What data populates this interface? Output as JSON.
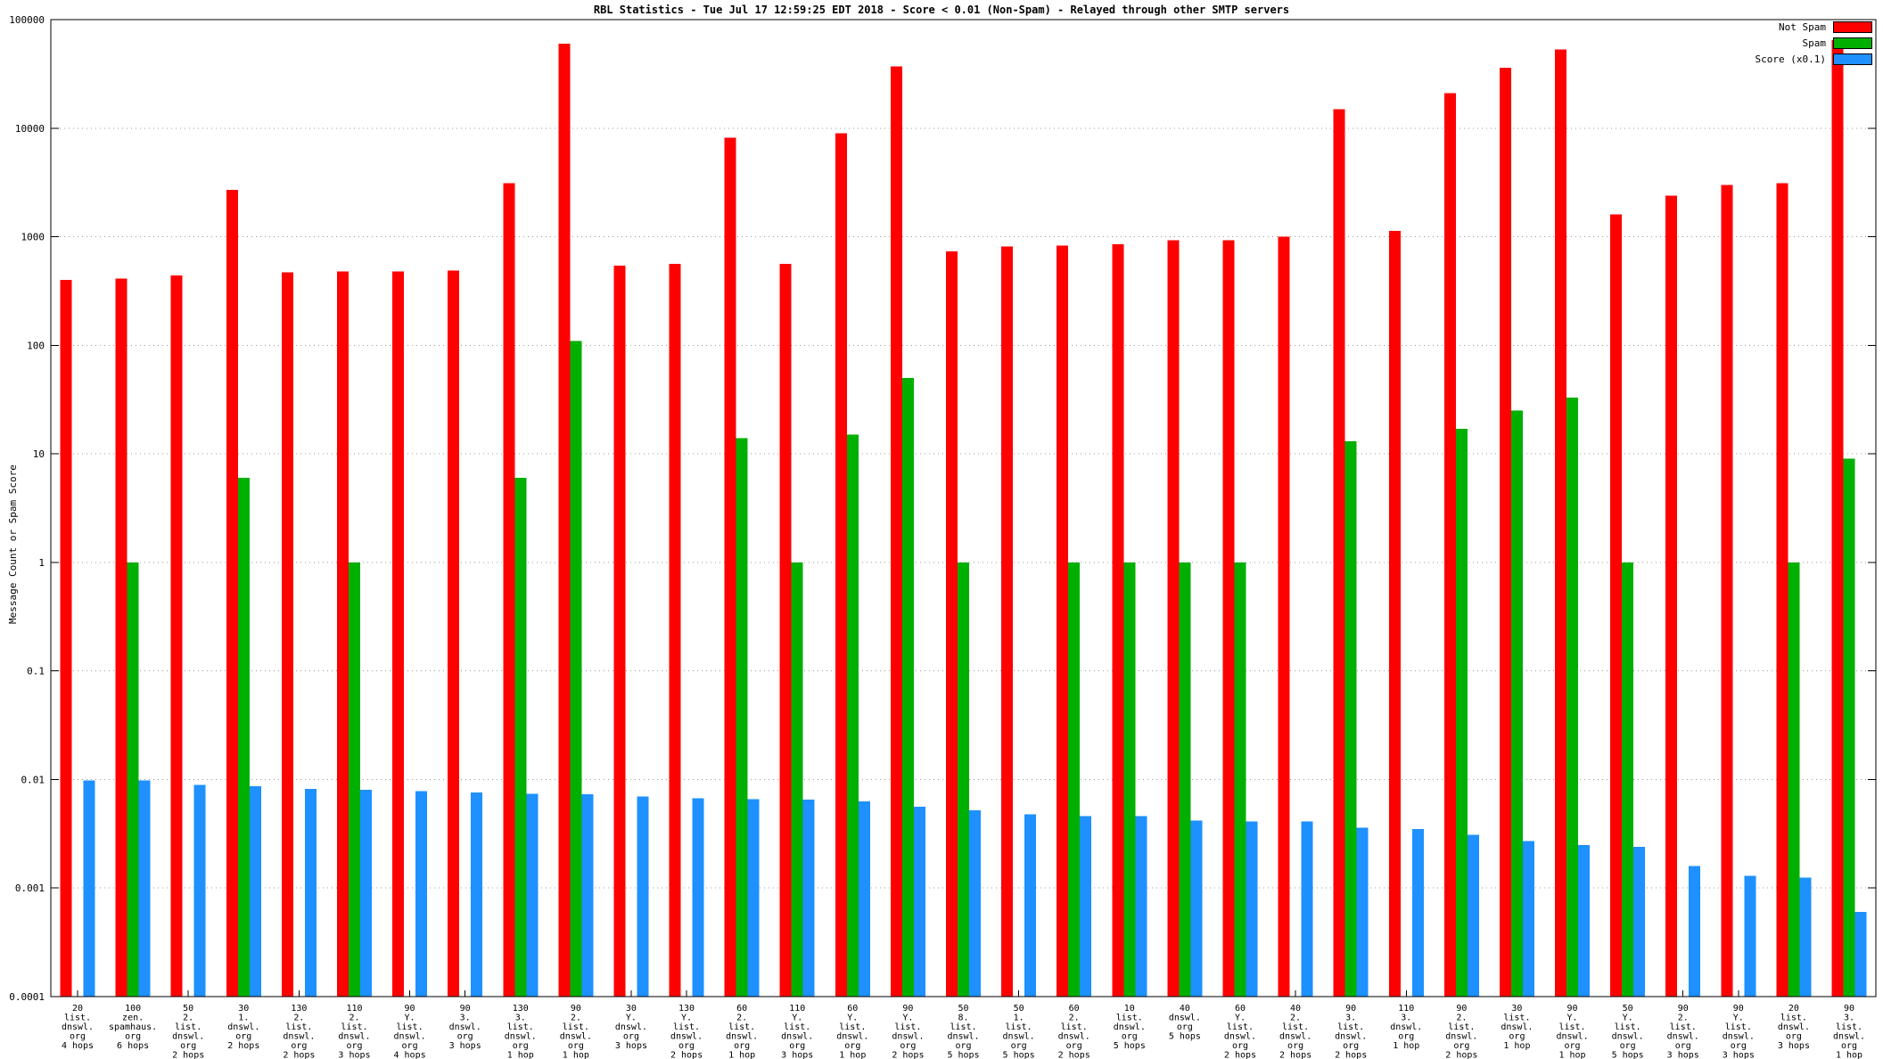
{
  "chart_data": {
    "type": "bar",
    "title": "RBL Statistics - Tue Jul 17 12:59:25 EDT 2018 - Score < 0.01 (Non-Spam) - Relayed through other SMTP servers",
    "ylabel": "Message Count or Spam Score",
    "xlabel": "",
    "y_scale": "log",
    "ylim": [
      0.0001,
      100000
    ],
    "y_tick_labels": [
      "100000",
      "10000",
      "1000",
      "100",
      "10",
      "1",
      "0.1",
      "0.01",
      "0.001",
      "0.0001"
    ],
    "grid": "horizontal-dotted",
    "legend_position": "top-right",
    "categories": [
      "20\nlist.\ndnswl.\norg\n4 hops",
      "100\nzen.\nspamhaus.\norg\n6 hops",
      "50\n2.\nlist.\ndnswl.\norg\n2 hops",
      "30\n1.\ndnswl.\norg\n2 hops",
      "130\n2.\nlist.\ndnswl.\norg\n2 hops",
      "110\n2.\nlist.\ndnswl.\norg\n3 hops",
      "90\nY.\nlist.\ndnswl.\norg\n4 hops",
      "90\n3.\ndnswl.\norg\n3 hops",
      "130\n3.\nlist.\ndnswl.\norg\n1 hop",
      "90\n2.\nlist.\ndnswl.\norg\n1 hop",
      "30\nY.\ndnswl.\norg\n3 hops",
      "130\nY.\nlist.\ndnswl.\norg\n2 hops",
      "60\n2.\nlist.\ndnswl.\norg\n1 hop",
      "110\nY.\nlist.\ndnswl.\norg\n3 hops",
      "60\nY.\nlist.\ndnswl.\norg\n1 hop",
      "90\nY.\nlist.\ndnswl.\norg\n2 hops",
      "50\n8.\nlist.\ndnswl.\norg\n5 hops",
      "50\n1.\nlist.\ndnswl.\norg\n5 hops",
      "60\n2.\nlist.\ndnswl.\norg\n2 hops",
      "10\nlist.\ndnswl.\norg\n5 hops",
      "40\ndnswl.\norg\n5 hops",
      "60\nY.\nlist.\ndnswl.\norg\n2 hops",
      "40\n2.\nlist.\ndnswl.\norg\n2 hops",
      "90\n3.\nlist.\ndnswl.\norg\n2 hops",
      "110\n3.\ndnswl.\norg\n1 hop",
      "90\n2.\nlist.\ndnswl.\norg\n2 hops",
      "30\nlist.\ndnswl.\norg\n1 hop",
      "90\nY.\nlist.\ndnswl.\norg\n1 hop",
      "50\nY.\nlist.\ndnswl.\norg\n5 hops",
      "90\n2.\nlist.\ndnswl.\norg\n3 hops",
      "90\nY.\nlist.\ndnswl.\norg\n3 hops",
      "20\nlist.\ndnswl.\norg\n3 hops",
      "90\n3.\nlist.\ndnswl.\norg\n1 hop"
    ],
    "series": [
      {
        "name": "Not Spam",
        "color": "#ff0000",
        "values": [
          400,
          410,
          440,
          2700,
          470,
          480,
          480,
          490,
          3100,
          60000,
          540,
          560,
          8200,
          560,
          9000,
          37000,
          730,
          810,
          830,
          850,
          930,
          930,
          1000,
          15000,
          1130,
          21000,
          36000,
          53000,
          1600,
          2400,
          3000,
          3100,
          65000
        ]
      },
      {
        "name": "Spam",
        "color": "#00b000",
        "values": [
          0,
          1,
          0,
          6,
          0,
          1,
          0,
          0,
          6,
          110,
          0,
          0,
          14,
          1,
          15,
          50,
          1,
          0,
          1,
          1,
          1,
          1,
          0,
          13,
          0,
          17,
          25,
          33,
          1,
          0,
          0,
          1,
          9
        ]
      },
      {
        "name": "Score (x0.1)",
        "color": "#1e90ff",
        "values": [
          0.0098,
          0.0098,
          0.0089,
          0.0087,
          0.0082,
          0.008,
          0.0078,
          0.0076,
          0.0074,
          0.0073,
          0.007,
          0.0067,
          0.0066,
          0.0065,
          0.0063,
          0.0056,
          0.0052,
          0.0048,
          0.0046,
          0.0046,
          0.0042,
          0.0041,
          0.0041,
          0.0036,
          0.0035,
          0.0031,
          0.0027,
          0.0025,
          0.0024,
          0.0016,
          0.0013,
          0.00125,
          0.0006
        ]
      }
    ]
  }
}
